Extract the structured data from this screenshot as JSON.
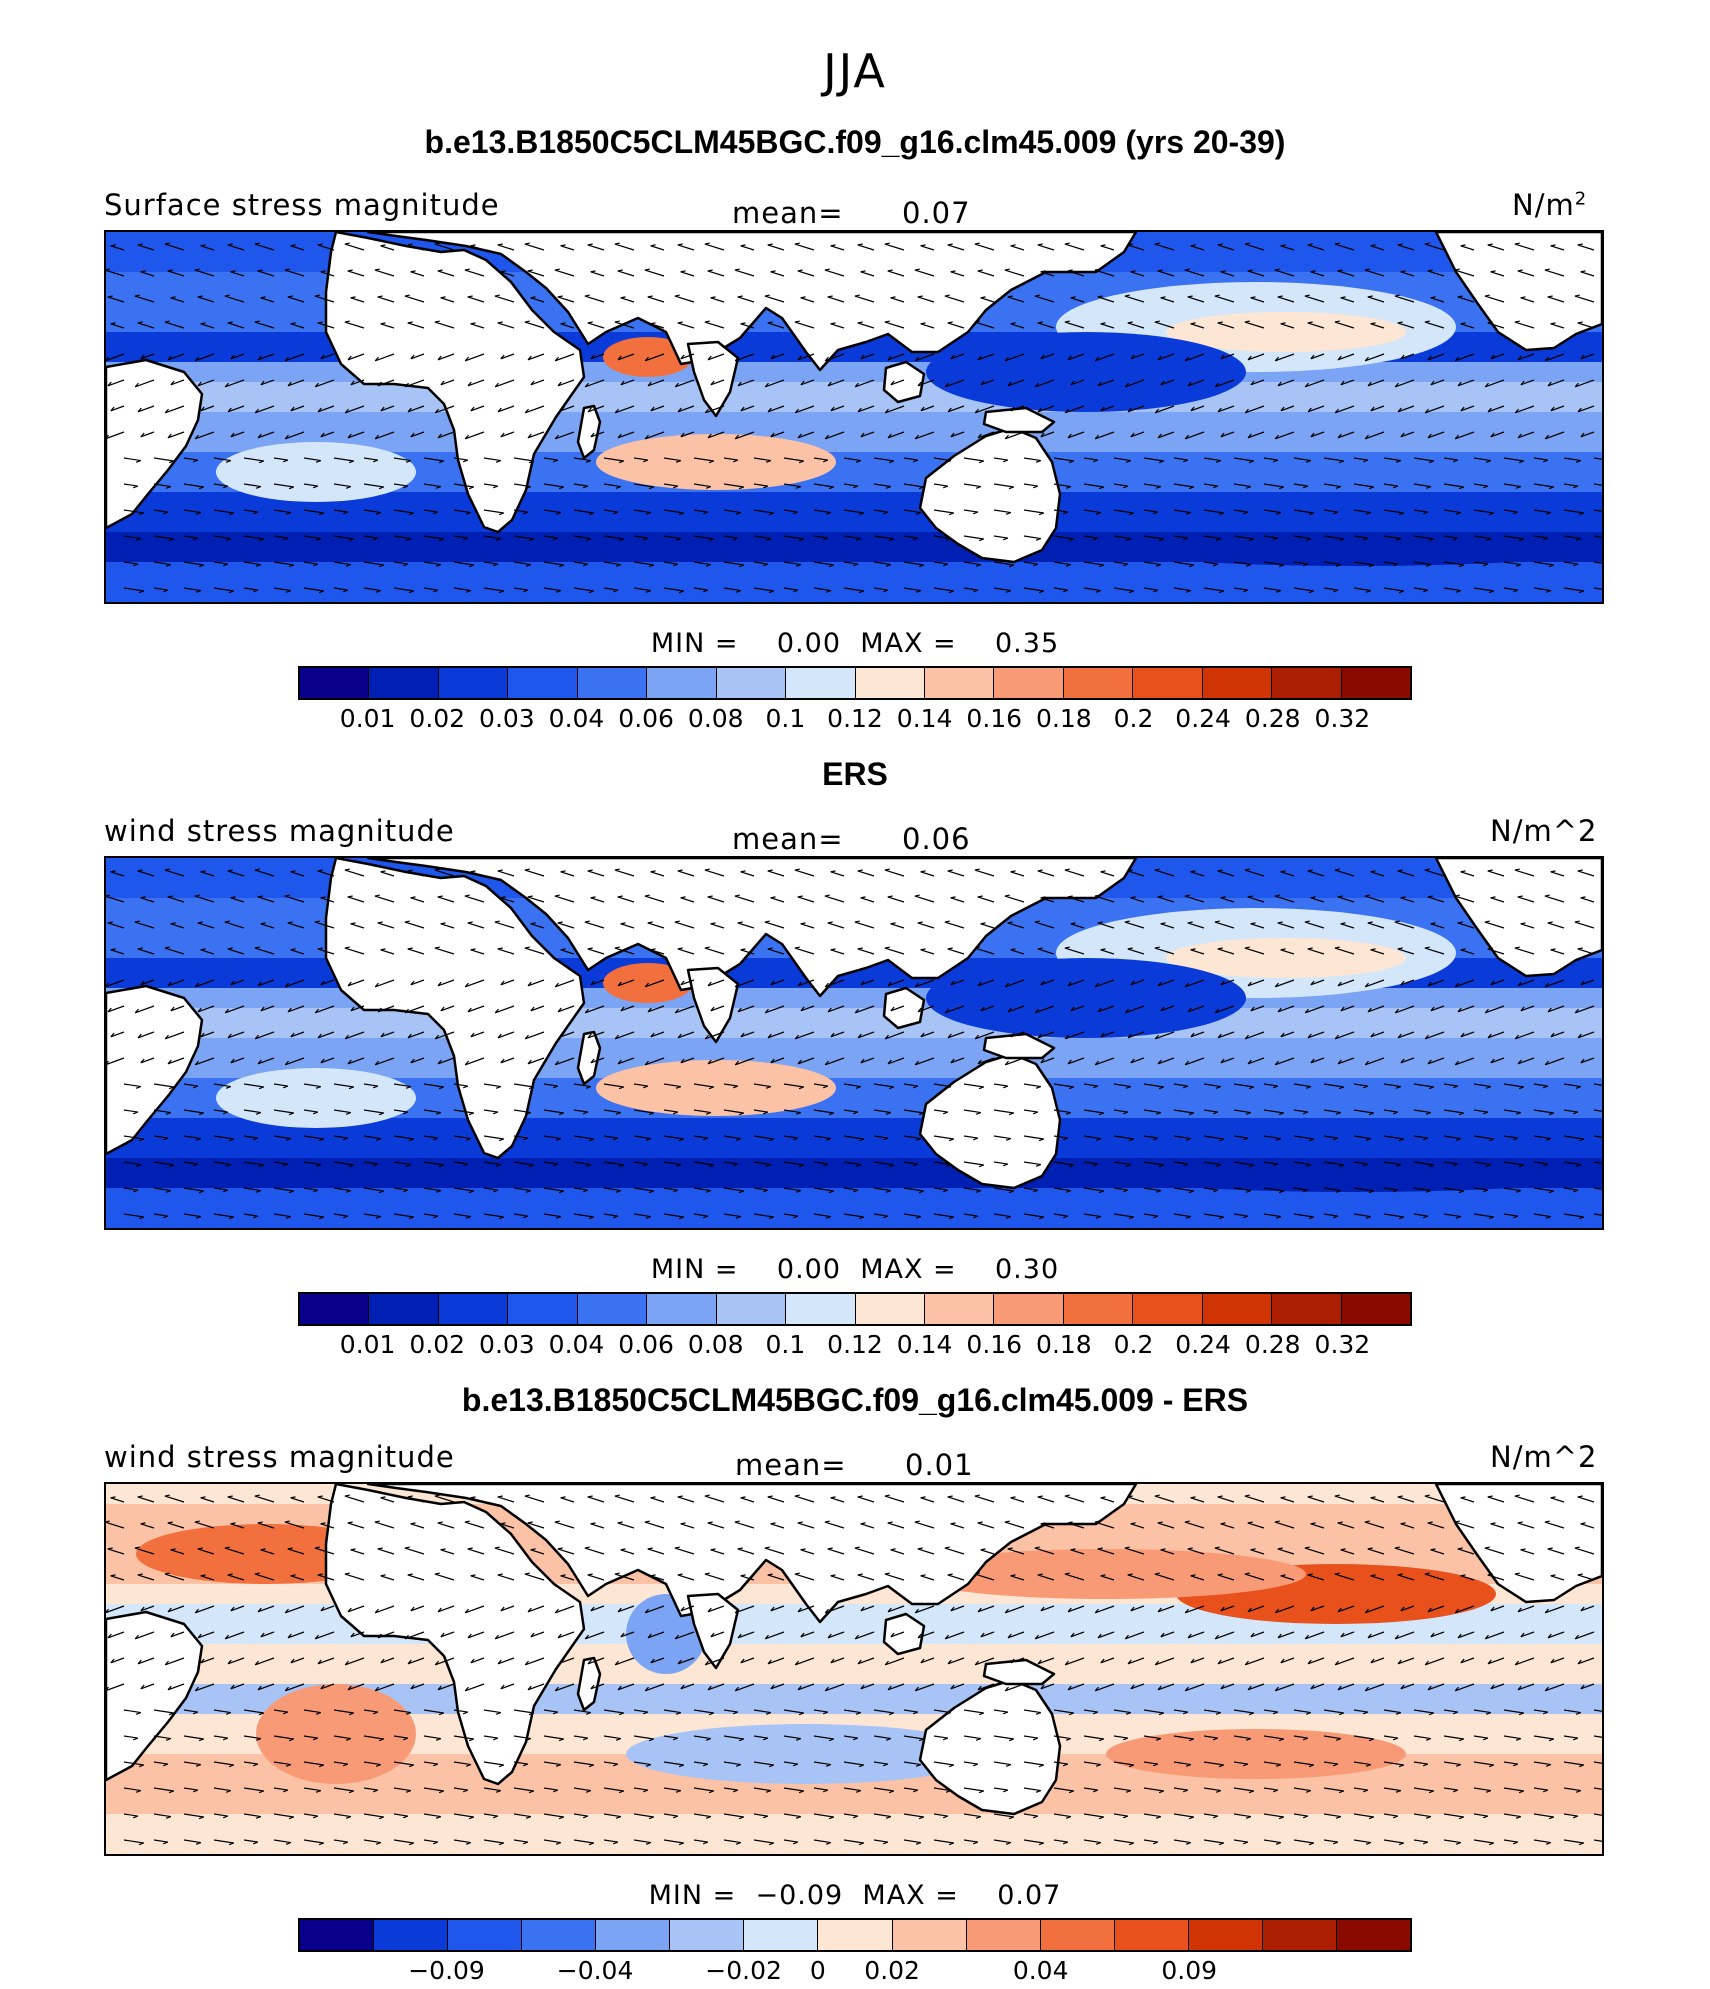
{
  "title": "JJA",
  "colors": [
    "#08008a",
    "#0020b4",
    "#0a3ad8",
    "#1f56ec",
    "#3a72f2",
    "#7ca4f4",
    "#a8c4f6",
    "#d4e6fa",
    "#fde6d4",
    "#fbc2a6",
    "#f89a76",
    "#f2703e",
    "#e8501c",
    "#d03404",
    "#ac1e02",
    "#8a0a00"
  ],
  "colors_diff": [
    "#08008a",
    "#0a3ad8",
    "#1f56ec",
    "#3a72f2",
    "#7ca4f4",
    "#a8c4f6",
    "#d4e6fa",
    "#fde6d4",
    "#fbc2a6",
    "#f89a76",
    "#f2703e",
    "#e8501c",
    "#d03404",
    "#ac1e02",
    "#8a0a00"
  ],
  "panels": [
    {
      "title": "b.e13.B1850C5CLM45BGC.f09_g16.clm45.009 (yrs 20-39)",
      "variable": "Surface stress magnitude",
      "mean_label": "mean=",
      "mean_value": "0.07",
      "units": "N/m",
      "units_sup": "2",
      "min_label": "MIN =",
      "min_value": "0.00",
      "max_label": "MAX =",
      "max_value": "0.35",
      "colorbar_ticks": [
        "0.01",
        "0.02",
        "0.03",
        "0.04",
        "0.06",
        "0.08",
        "0.1",
        "0.12",
        "0.14",
        "0.16",
        "0.18",
        "0.2",
        "0.24",
        "0.28",
        "0.32"
      ]
    },
    {
      "title": "ERS",
      "variable": "wind stress magnitude",
      "mean_label": "mean=",
      "mean_value": "0.06",
      "units": "N/m^2",
      "min_label": "MIN =",
      "min_value": "0.00",
      "max_label": "MAX =",
      "max_value": "0.30",
      "colorbar_ticks": [
        "0.01",
        "0.02",
        "0.03",
        "0.04",
        "0.06",
        "0.08",
        "0.1",
        "0.12",
        "0.14",
        "0.16",
        "0.18",
        "0.2",
        "0.24",
        "0.28",
        "0.32"
      ]
    },
    {
      "title": "b.e13.B1850C5CLM45BGC.f09_g16.clm45.009 - ERS",
      "variable": "wind stress magnitude",
      "mean_label": "mean=",
      "mean_value": "0.01",
      "units": "N/m^2",
      "min_label": "MIN =",
      "min_value": "−0.09",
      "max_label": "MAX =",
      "max_value": "0.07",
      "colorbar_ticks": [
        "−0.09",
        "−0.04",
        "−0.02",
        "0",
        "0.02",
        "0.04",
        "0.09"
      ]
    }
  ]
}
